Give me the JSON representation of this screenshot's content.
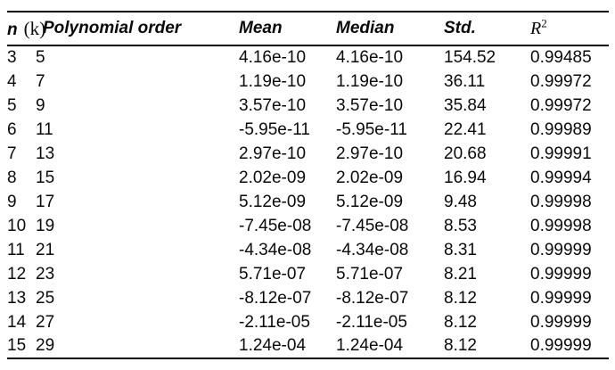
{
  "page": {
    "background_color": "#ffffff",
    "text_color": "#0a0a0a",
    "rule_color": "#000000"
  },
  "table": {
    "header": {
      "n_main": "n",
      "n_paren": "(k)",
      "polynomial_order": "Polynomial order",
      "mean": "Mean",
      "median": "Median",
      "std": "Std.",
      "r2_base": "R",
      "r2_sup": "2"
    },
    "rows": [
      [
        "3",
        "5",
        "4.16e-10",
        "4.16e-10",
        "154.52",
        "0.99485"
      ],
      [
        "4",
        "7",
        "1.19e-10",
        "1.19e-10",
        "36.11",
        "0.99972"
      ],
      [
        "5",
        "9",
        "3.57e-10",
        "3.57e-10",
        "35.84",
        "0.99972"
      ],
      [
        "6",
        "11",
        "-5.95e-11",
        "-5.95e-11",
        "22.41",
        "0.99989"
      ],
      [
        "7",
        "13",
        "2.97e-10",
        "2.97e-10",
        "20.68",
        "0.99991"
      ],
      [
        "8",
        "15",
        "2.02e-09",
        "2.02e-09",
        "16.94",
        "0.99994"
      ],
      [
        "9",
        "17",
        "5.12e-09",
        "5.12e-09",
        "9.48",
        "0.99998"
      ],
      [
        "10",
        "19",
        "-7.45e-08",
        "-7.45e-08",
        "8.53",
        "0.99998"
      ],
      [
        "11",
        "21",
        "-4.34e-08",
        "-4.34e-08",
        "8.31",
        "0.99999"
      ],
      [
        "12",
        "23",
        "5.71e-07",
        "5.71e-07",
        "8.21",
        "0.99999"
      ],
      [
        "13",
        "25",
        "-8.12e-07",
        "-8.12e-07",
        "8.12",
        "0.99999"
      ],
      [
        "14",
        "27",
        "-2.11e-05",
        "-2.11e-05",
        "8.12",
        "0.99999"
      ],
      [
        "15",
        "29",
        "1.24e-04",
        "1.24e-04",
        "8.12",
        "0.99999"
      ]
    ]
  }
}
